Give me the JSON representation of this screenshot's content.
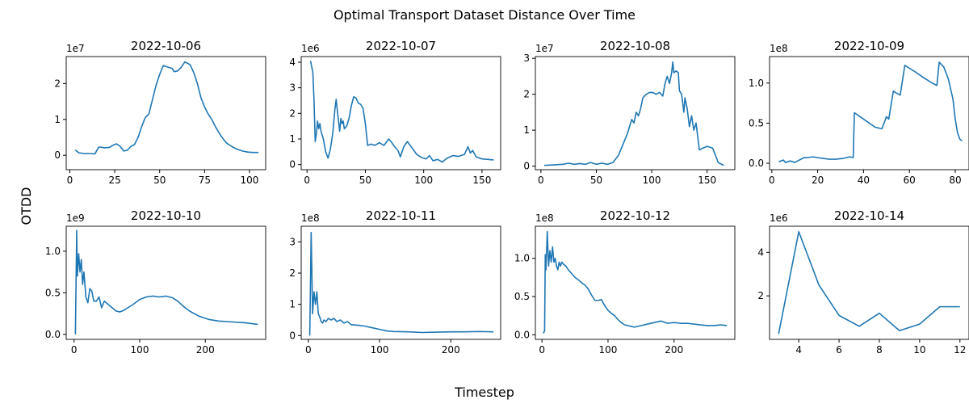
{
  "figure": {
    "title": "Optimal Transport Dataset Distance Over Time",
    "xlabel": "Timestep",
    "ylabel": "OTDD"
  },
  "colors": {
    "line": "#1f77b4",
    "axes": "#000000"
  },
  "chart_data": [
    {
      "type": "line",
      "title": "2022-10-06",
      "exponent": "1e7",
      "xlim": [
        -2,
        109
      ],
      "ylim": [
        -0.4,
        2.75
      ],
      "xticks": [
        0,
        25,
        50,
        75,
        100
      ],
      "xtick_labels": [
        "0",
        "25",
        "50",
        "75",
        "100"
      ],
      "yticks": [
        0,
        1,
        2
      ],
      "ytick_labels": [
        "0",
        "1",
        "2"
      ],
      "x": [
        3,
        5,
        8,
        11,
        14,
        16,
        17,
        19,
        22,
        24,
        26,
        28,
        30,
        32,
        34,
        36,
        38,
        40,
        42,
        44,
        46,
        48,
        50,
        52,
        53,
        55,
        57,
        58,
        60,
        62,
        64,
        66,
        67,
        69,
        71,
        73,
        75,
        77,
        79,
        81,
        84,
        87,
        90,
        93,
        96,
        99,
        102,
        105
      ],
      "y": [
        0.15,
        0.07,
        0.05,
        0.05,
        0.04,
        0.22,
        0.23,
        0.21,
        0.22,
        0.28,
        0.32,
        0.25,
        0.12,
        0.14,
        0.25,
        0.3,
        0.5,
        0.8,
        1.05,
        1.15,
        1.55,
        1.95,
        2.25,
        2.5,
        2.48,
        2.45,
        2.42,
        2.33,
        2.35,
        2.45,
        2.6,
        2.55,
        2.52,
        2.3,
        2.0,
        1.6,
        1.35,
        1.15,
        1.0,
        0.8,
        0.55,
        0.35,
        0.25,
        0.17,
        0.12,
        0.09,
        0.08,
        0.08
      ]
    },
    {
      "type": "line",
      "title": "2022-10-07",
      "exponent": "1e6",
      "xlim": [
        -5,
        166
      ],
      "ylim": [
        -0.2,
        4.22
      ],
      "xticks": [
        0,
        50,
        100,
        150
      ],
      "xtick_labels": [
        "0",
        "50",
        "100",
        "150"
      ],
      "yticks": [
        0,
        1,
        2,
        3,
        4
      ],
      "ytick_labels": [
        "0",
        "1",
        "2",
        "3",
        "4"
      ],
      "x": [
        3,
        5,
        6,
        7,
        8,
        9,
        10,
        11,
        12,
        14,
        16,
        18,
        20,
        22,
        24,
        25,
        26,
        28,
        29,
        30,
        31,
        32,
        34,
        36,
        38,
        40,
        42,
        44,
        46,
        48,
        50,
        52,
        55,
        58,
        62,
        66,
        70,
        72,
        75,
        78,
        80,
        83,
        86,
        90,
        94,
        98,
        102,
        105,
        108,
        112,
        116,
        120,
        125,
        130,
        135,
        138,
        140,
        142,
        145,
        150,
        155,
        160
      ],
      "y": [
        4.05,
        3.6,
        2.5,
        0.9,
        1.2,
        1.7,
        1.4,
        1.6,
        1.3,
        1.0,
        0.5,
        0.25,
        0.6,
        1.2,
        2.2,
        2.55,
        2.1,
        1.3,
        1.8,
        1.6,
        1.7,
        1.4,
        1.5,
        1.8,
        2.3,
        2.65,
        2.6,
        2.4,
        2.35,
        2.2,
        1.6,
        0.75,
        0.8,
        0.75,
        0.85,
        0.75,
        1.0,
        0.9,
        0.7,
        0.55,
        0.3,
        0.7,
        0.9,
        0.65,
        0.4,
        0.28,
        0.22,
        0.35,
        0.15,
        0.2,
        0.1,
        0.25,
        0.35,
        0.32,
        0.4,
        0.7,
        0.45,
        0.55,
        0.3,
        0.22,
        0.2,
        0.18
      ]
    },
    {
      "type": "line",
      "title": "2022-10-08",
      "exponent": "1e7",
      "xlim": [
        -5,
        175
      ],
      "ylim": [
        -0.1,
        3.05
      ],
      "xticks": [
        0,
        50,
        100,
        150
      ],
      "xtick_labels": [
        "0",
        "50",
        "100",
        "150"
      ],
      "yticks": [
        0,
        1,
        2,
        3
      ],
      "ytick_labels": [
        "0",
        "1",
        "2",
        "3"
      ],
      "x": [
        3,
        10,
        20,
        25,
        30,
        35,
        40,
        45,
        50,
        55,
        60,
        65,
        70,
        74,
        78,
        80,
        82,
        84,
        86,
        88,
        90,
        92,
        95,
        98,
        101,
        104,
        107,
        110,
        112,
        114,
        116,
        118,
        119,
        120,
        122,
        124,
        125,
        127,
        129,
        130,
        132,
        134,
        136,
        138,
        140,
        143,
        146,
        150,
        155,
        160,
        165
      ],
      "y": [
        0.02,
        0.03,
        0.05,
        0.08,
        0.05,
        0.07,
        0.05,
        0.1,
        0.05,
        0.08,
        0.05,
        0.1,
        0.3,
        0.6,
        0.9,
        1.1,
        1.3,
        1.2,
        1.5,
        1.4,
        1.6,
        1.9,
        2.0,
        2.05,
        2.05,
        2.0,
        2.05,
        1.95,
        2.3,
        2.5,
        2.3,
        2.6,
        2.9,
        2.6,
        2.65,
        2.6,
        2.1,
        2.0,
        1.5,
        1.9,
        1.6,
        1.1,
        1.4,
        1.0,
        1.2,
        0.45,
        0.5,
        0.55,
        0.5,
        0.1,
        0.02
      ]
    },
    {
      "type": "line",
      "title": "2022-10-09",
      "exponent": "1e8",
      "xlim": [
        -1,
        86
      ],
      "ylim": [
        -0.08,
        1.33
      ],
      "xticks": [
        0,
        20,
        40,
        60,
        80
      ],
      "xtick_labels": [
        "0",
        "20",
        "40",
        "60",
        "80"
      ],
      "yticks": [
        0.0,
        0.5,
        1.0
      ],
      "ytick_labels": [
        "0.0",
        "0.5",
        "1.0"
      ],
      "x": [
        3,
        5,
        6,
        8,
        10,
        12,
        14,
        15,
        18,
        20,
        25,
        28,
        31,
        34,
        35.5,
        36,
        40,
        45,
        48,
        50,
        51,
        53,
        54,
        56,
        58,
        62,
        66,
        70,
        72,
        73,
        75,
        77,
        79,
        80,
        81,
        82,
        83
      ],
      "y": [
        0.02,
        0.04,
        0.01,
        0.03,
        0.01,
        0.04,
        0.07,
        0.07,
        0.08,
        0.07,
        0.05,
        0.05,
        0.06,
        0.08,
        0.07,
        0.63,
        0.55,
        0.45,
        0.43,
        0.58,
        0.55,
        0.9,
        0.88,
        0.85,
        1.22,
        1.15,
        1.07,
        1.0,
        0.97,
        1.26,
        1.2,
        1.05,
        0.8,
        0.55,
        0.38,
        0.3,
        0.28
      ]
    },
    {
      "type": "line",
      "title": "2022-10-10",
      "exponent": "1e9",
      "xlim": [
        -12,
        292
      ],
      "ylim": [
        -0.06,
        1.3
      ],
      "xticks": [
        0,
        100,
        200
      ],
      "xtick_labels": [
        "0",
        "100",
        "200"
      ],
      "yticks": [
        0.0,
        0.5,
        1.0
      ],
      "ytick_labels": [
        "0.0",
        "0.5",
        "1.0"
      ],
      "x": [
        2,
        4,
        5,
        7,
        9,
        11,
        13,
        15,
        18,
        21,
        24,
        27,
        30,
        34,
        38,
        42,
        46,
        52,
        58,
        64,
        70,
        76,
        82,
        90,
        100,
        110,
        120,
        130,
        140,
        150,
        158,
        166,
        176,
        190,
        205,
        220,
        240,
        260,
        280
      ],
      "y": [
        0.0,
        1.25,
        0.7,
        0.97,
        0.75,
        0.9,
        0.6,
        0.75,
        0.45,
        0.38,
        0.55,
        0.52,
        0.4,
        0.4,
        0.45,
        0.32,
        0.4,
        0.36,
        0.32,
        0.28,
        0.27,
        0.29,
        0.32,
        0.36,
        0.42,
        0.45,
        0.46,
        0.45,
        0.46,
        0.44,
        0.4,
        0.34,
        0.28,
        0.22,
        0.18,
        0.16,
        0.15,
        0.14,
        0.12
      ]
    },
    {
      "type": "line",
      "title": "2022-10-11",
      "exponent": "1e8",
      "xlim": [
        -10,
        270
      ],
      "ylim": [
        -0.12,
        3.5
      ],
      "xticks": [
        0,
        100,
        200
      ],
      "xtick_labels": [
        "0",
        "100",
        "200"
      ],
      "yticks": [
        0,
        1,
        2,
        3
      ],
      "ytick_labels": [
        "0",
        "1",
        "2",
        "3"
      ],
      "x": [
        2,
        4,
        6,
        8,
        10,
        12,
        14,
        16,
        18,
        20,
        22,
        25,
        28,
        32,
        36,
        40,
        45,
        50,
        55,
        60,
        70,
        80,
        90,
        100,
        110,
        120,
        140,
        160,
        180,
        200,
        220,
        240,
        260
      ],
      "y": [
        0.0,
        3.3,
        0.7,
        1.4,
        1.0,
        1.4,
        0.7,
        0.6,
        0.45,
        0.4,
        0.5,
        0.45,
        0.55,
        0.5,
        0.55,
        0.45,
        0.5,
        0.4,
        0.45,
        0.35,
        0.33,
        0.3,
        0.25,
        0.2,
        0.15,
        0.13,
        0.12,
        0.1,
        0.11,
        0.12,
        0.12,
        0.13,
        0.12
      ]
    },
    {
      "type": "line",
      "title": "2022-10-12",
      "exponent": "1e8",
      "xlim": [
        -10,
        292
      ],
      "ylim": [
        -0.06,
        1.42
      ],
      "xticks": [
        0,
        100,
        200
      ],
      "xtick_labels": [
        "0",
        "100",
        "200"
      ],
      "yticks": [
        0.0,
        0.5,
        1.0
      ],
      "ytick_labels": [
        "0.0",
        "0.5",
        "1.0"
      ],
      "x": [
        2,
        4,
        5,
        6,
        8,
        10,
        12,
        14,
        16,
        18,
        20,
        22,
        24,
        26,
        28,
        30,
        33,
        36,
        40,
        45,
        50,
        55,
        60,
        65,
        70,
        75,
        80,
        85,
        90,
        95,
        100,
        105,
        110,
        115,
        120,
        125,
        130,
        135,
        140,
        150,
        160,
        170,
        180,
        190,
        200,
        210,
        220,
        230,
        240,
        250,
        260,
        270,
        280
      ],
      "y": [
        0.02,
        0.05,
        1.05,
        0.85,
        1.35,
        0.9,
        1.1,
        0.95,
        1.15,
        0.95,
        1.0,
        0.9,
        0.85,
        0.95,
        0.9,
        0.95,
        0.92,
        0.9,
        0.85,
        0.8,
        0.75,
        0.72,
        0.68,
        0.65,
        0.6,
        0.52,
        0.45,
        0.45,
        0.46,
        0.38,
        0.32,
        0.28,
        0.25,
        0.2,
        0.16,
        0.13,
        0.12,
        0.11,
        0.1,
        0.12,
        0.14,
        0.16,
        0.18,
        0.15,
        0.16,
        0.15,
        0.15,
        0.14,
        0.13,
        0.12,
        0.12,
        0.13,
        0.12
      ]
    },
    {
      "type": "line",
      "title": "2022-10-14",
      "exponent": "1e6",
      "xlim": [
        2.55,
        12.45
      ],
      "ylim": [
        0.0,
        5.2
      ],
      "xticks": [
        4,
        6,
        8,
        10,
        12
      ],
      "xtick_labels": [
        "4",
        "6",
        "8",
        "10",
        "12"
      ],
      "yticks": [
        2,
        4
      ],
      "ytick_labels": [
        "2",
        "4"
      ],
      "x": [
        3,
        4,
        5,
        6,
        7,
        8,
        9,
        10,
        11,
        12
      ],
      "y": [
        0.25,
        4.95,
        2.5,
        1.1,
        0.6,
        1.2,
        0.4,
        0.7,
        1.5,
        1.5
      ]
    }
  ]
}
